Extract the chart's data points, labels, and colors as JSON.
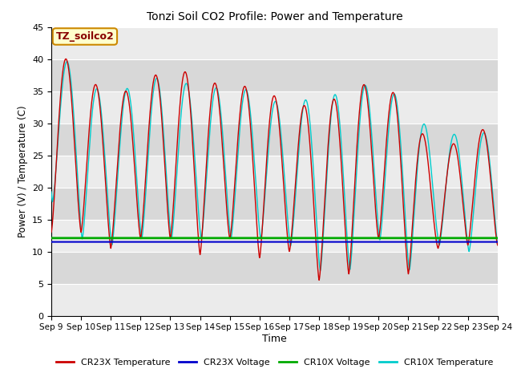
{
  "title": "Tonzi Soil CO2 Profile: Power and Temperature",
  "ylabel": "Power (V) / Temperature (C)",
  "xlabel": "Time",
  "ylim": [
    0,
    45
  ],
  "annotation": "TZ_soilco2",
  "bg_color_light": "#ebebeb",
  "bg_color_dark": "#d8d8d8",
  "cr23x_voltage": 11.5,
  "cr10x_voltage": 12.1,
  "legend_entries": [
    "CR23X Temperature",
    "CR23X Voltage",
    "CR10X Voltage",
    "CR10X Temperature"
  ],
  "legend_colors": [
    "#cc0000",
    "#0000cc",
    "#00aa00",
    "#00cccc"
  ],
  "x_tick_labels": [
    "Sep 9",
    "Sep 10",
    "Sep 11",
    "Sep 12",
    "Sep 13",
    "Sep 14",
    "Sep 15",
    "Sep 16",
    "Sep 17",
    "Sep 18",
    "Sep 19",
    "Sep 20",
    "Sep 21",
    "Sep 22",
    "Sep 23",
    "Sep 24"
  ],
  "yticks": [
    0,
    5,
    10,
    15,
    20,
    25,
    30,
    35,
    40,
    45
  ],
  "cr23x_peaks": [
    13,
    42,
    13,
    38,
    10.5,
    34,
    12,
    36,
    12,
    39,
    9.5,
    37,
    12,
    35.5,
    9,
    36,
    10,
    32.5,
    5.5,
    33,
    6.5,
    34.5,
    12,
    37.5,
    6.5,
    32,
    10.5,
    24.5,
    11,
    29
  ],
  "cr10x_peaks": [
    18,
    42,
    12,
    37.5,
    11,
    33.5,
    12,
    37,
    12,
    37,
    12,
    35.5,
    12,
    35.5,
    12,
    35,
    11,
    32,
    7,
    35,
    7,
    34,
    12,
    37.5,
    7,
    32,
    11,
    28,
    10,
    28.5
  ]
}
